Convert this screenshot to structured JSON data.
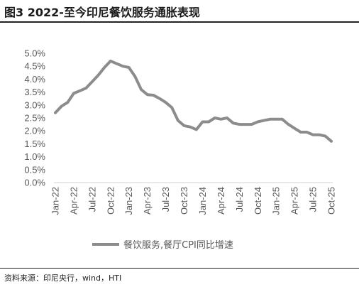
{
  "header": {
    "title": "图3  2022-至今印尼餐饮服务通胀表现"
  },
  "footer": {
    "source": "资料来源：印尼央行，wind，HTI"
  },
  "chart_data": {
    "type": "line",
    "ylim": [
      0,
      5
    ],
    "yticks": [
      "0.0%",
      "0.5%",
      "1.0%",
      "1.5%",
      "2.0%",
      "2.5%",
      "3.0%",
      "3.5%",
      "4.0%",
      "4.5%",
      "5.0%"
    ],
    "xticks": [
      "Jan-22",
      "Apr-22",
      "Jul-22",
      "Oct-22",
      "Jan-23",
      "Apr-23",
      "Jul-23",
      "Oct-23",
      "Jan-24",
      "Apr-24",
      "Jul-24",
      "Oct-24",
      "Jan-25",
      "Apr-25",
      "Jul-25",
      "Oct-25"
    ],
    "grid": false,
    "legend_position": "bottom",
    "series": [
      {
        "name": "餐饮服务,餐厅CPI同比增速",
        "color": "#8c8c8c",
        "values": [
          2.7,
          2.95,
          3.1,
          3.45,
          3.55,
          3.65,
          3.9,
          4.15,
          4.45,
          4.7,
          4.6,
          4.5,
          4.45,
          4.1,
          3.6,
          3.4,
          3.38,
          3.25,
          3.1,
          2.9,
          2.4,
          2.2,
          2.15,
          2.05,
          2.35,
          2.35,
          2.5,
          2.45,
          2.5,
          2.3,
          2.25,
          2.25,
          2.25,
          2.35,
          2.4,
          2.45,
          2.45,
          2.45,
          2.25,
          2.1,
          1.95,
          1.95,
          1.85,
          1.85,
          1.8,
          1.6
        ]
      }
    ]
  }
}
